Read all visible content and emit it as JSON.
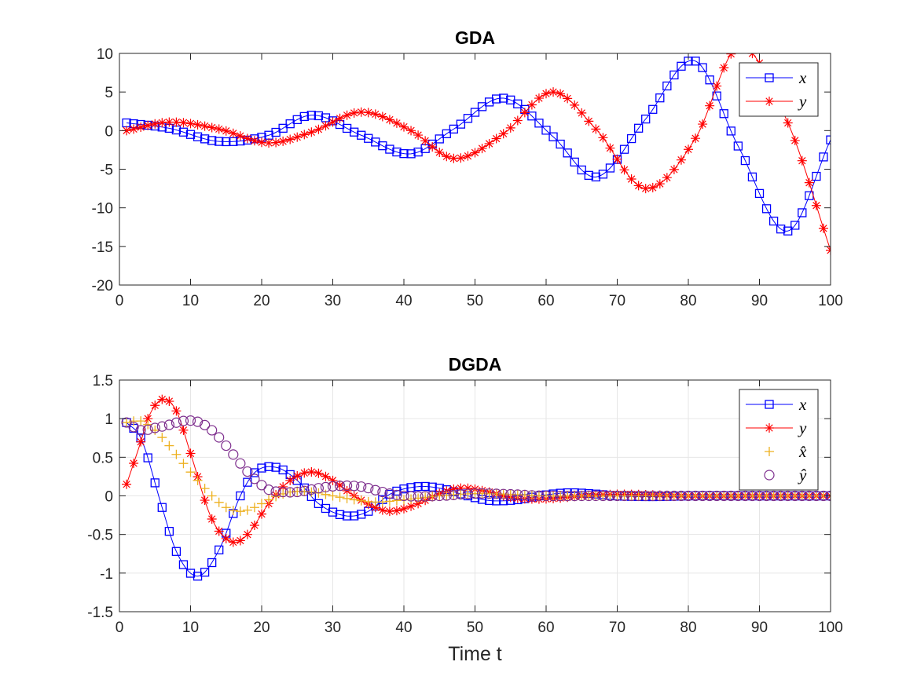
{
  "colors": {
    "x": "#0000ff",
    "y": "#ff0000",
    "xhat": "#edb120",
    "yhat": "#7e2f8e",
    "axis": "#262626",
    "grid": "#e6e6e6"
  },
  "chart_data": [
    {
      "type": "line",
      "title": "GDA",
      "xlabel": "",
      "ylabel": "",
      "xlim": [
        0,
        100
      ],
      "ylim": [
        -20,
        10
      ],
      "xticks": [
        0,
        10,
        20,
        30,
        40,
        50,
        60,
        70,
        80,
        90,
        100
      ],
      "yticks": [
        -20,
        -15,
        -10,
        -5,
        0,
        5,
        10
      ],
      "grid": false,
      "legend_position": "top-right",
      "series": [
        {
          "name": "x",
          "label": "x",
          "marker": "square",
          "color": "x",
          "line": true,
          "model": {
            "t0": 1,
            "start": 1.0,
            "steps": 100,
            "formula": "growing-oscillation",
            "growth": 0.03,
            "period": 27,
            "phase_deg": 0,
            "amplitude_note": "x(t) ≈ 1.03^(t-1)·cos(2π(t-1)/27)"
          },
          "x": [
            1,
            7,
            14,
            21,
            27,
            34,
            41,
            47,
            54,
            61,
            67,
            74,
            81,
            87,
            94,
            100
          ],
          "y": [
            1.0,
            0.3,
            -1.4,
            -0.6,
            2.0,
            -0.6,
            -3.0,
            0.2,
            4.2,
            -0.8,
            -6.0,
            1.5,
            9.0,
            -2.0,
            -13.0,
            -1.2
          ]
        },
        {
          "name": "y",
          "label": "y",
          "marker": "star",
          "color": "y",
          "line": true,
          "x": [
            1,
            7,
            14,
            21,
            27,
            34,
            41,
            47,
            54,
            61,
            67,
            74,
            81,
            87,
            94,
            100
          ],
          "y": [
            0.0,
            1.1,
            0.2,
            -1.6,
            -0.2,
            2.4,
            0.0,
            -3.6,
            -0.4,
            5.0,
            0.2,
            -7.5,
            -1.0,
            10.8,
            1.0,
            -15.5
          ]
        }
      ]
    },
    {
      "type": "line",
      "title": "DGDA",
      "xlabel": "Time t",
      "ylabel": "",
      "xlim": [
        0,
        100
      ],
      "ylim": [
        -1.5,
        1.5
      ],
      "xticks": [
        0,
        10,
        20,
        30,
        40,
        50,
        60,
        70,
        80,
        90,
        100
      ],
      "yticks": [
        -1.5,
        -1,
        -0.5,
        0,
        0.5,
        1,
        1.5
      ],
      "grid": true,
      "legend_position": "top-right",
      "series": [
        {
          "name": "x",
          "label": "x",
          "marker": "square",
          "color": "x",
          "line": true,
          "x": [
            1,
            3,
            6,
            8,
            11,
            14,
            17,
            19,
            22,
            25,
            28,
            32,
            35,
            38,
            42,
            45,
            49,
            52,
            56,
            59,
            63,
            66,
            70,
            75,
            80,
            90,
            100
          ],
          "y": [
            0.95,
            0.75,
            -0.15,
            -0.72,
            -1.04,
            -0.7,
            0.0,
            0.3,
            0.37,
            0.2,
            -0.1,
            -0.26,
            -0.2,
            0.02,
            0.12,
            0.1,
            0.0,
            -0.06,
            -0.05,
            0.0,
            0.04,
            0.03,
            0.0,
            -0.01,
            0.0,
            0.0,
            0.0
          ]
        },
        {
          "name": "y",
          "label": "y",
          "marker": "star",
          "color": "y",
          "line": true,
          "x": [
            1,
            3,
            4,
            6,
            8,
            10,
            13,
            16,
            18,
            21,
            24,
            27,
            30,
            33,
            36,
            38,
            42,
            45,
            48,
            52,
            55,
            60,
            65,
            70,
            80,
            90,
            100
          ],
          "y": [
            0.15,
            0.7,
            1.0,
            1.25,
            1.1,
            0.55,
            -0.3,
            -0.6,
            -0.5,
            -0.1,
            0.2,
            0.31,
            0.2,
            0.0,
            -0.15,
            -0.2,
            -0.1,
            0.03,
            0.1,
            0.05,
            -0.02,
            -0.04,
            0.0,
            0.02,
            0.0,
            0.0,
            0.0
          ]
        },
        {
          "name": "xhat",
          "label": "x̂",
          "marker": "plus",
          "color": "xhat",
          "line": false,
          "x": [
            1,
            3,
            5,
            7,
            9,
            11,
            13,
            15,
            17,
            19,
            21,
            24,
            27,
            30,
            33,
            36,
            40,
            45,
            50,
            55,
            60,
            70,
            80,
            90,
            100
          ],
          "y": [
            0.95,
            0.97,
            0.85,
            0.65,
            0.42,
            0.2,
            0.0,
            -0.15,
            -0.2,
            -0.15,
            -0.05,
            0.05,
            0.05,
            0.0,
            -0.05,
            -0.08,
            -0.05,
            0.0,
            0.03,
            0.02,
            0.0,
            0.0,
            0.0,
            0.0,
            0.0
          ]
        },
        {
          "name": "yhat",
          "label": "ŷ",
          "marker": "circle",
          "color": "yhat",
          "line": false,
          "x": [
            1,
            3,
            5,
            7,
            9,
            11,
            13,
            15,
            17,
            19,
            21,
            23,
            25,
            28,
            31,
            34,
            37,
            40,
            45,
            50,
            55,
            60,
            65,
            70,
            80,
            90,
            100
          ],
          "y": [
            0.95,
            0.85,
            0.88,
            0.92,
            0.97,
            0.96,
            0.85,
            0.65,
            0.42,
            0.22,
            0.08,
            0.05,
            0.05,
            0.1,
            0.13,
            0.12,
            0.05,
            0.0,
            0.0,
            0.03,
            0.02,
            0.0,
            0.0,
            0.0,
            0.0,
            0.0,
            0.0
          ]
        }
      ]
    }
  ]
}
